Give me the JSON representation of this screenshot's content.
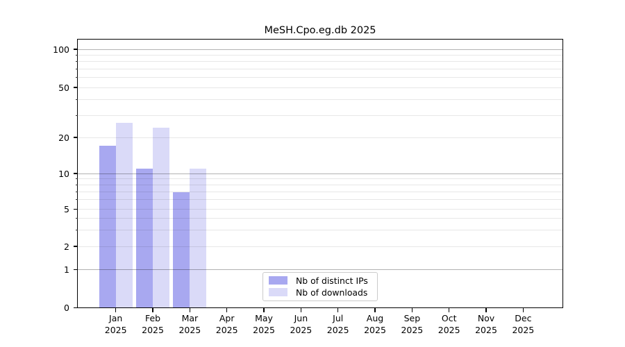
{
  "chart_data": {
    "type": "bar",
    "title": "MeSH.Cpo.eg.db 2025",
    "categories": [
      "Jan",
      "Feb",
      "Mar",
      "Apr",
      "May",
      "Jun",
      "Jul",
      "Aug",
      "Sep",
      "Oct",
      "Nov",
      "Dec"
    ],
    "year": "2025",
    "series": [
      {
        "name": "Nb of distinct IPs",
        "color": "#a8a8f0",
        "values": [
          17,
          11,
          7,
          0,
          0,
          0,
          0,
          0,
          0,
          0,
          0,
          0
        ]
      },
      {
        "name": "Nb of downloads",
        "color": "#dadaf8",
        "values": [
          26,
          24,
          11,
          0,
          0,
          0,
          0,
          0,
          0,
          0,
          0,
          0
        ]
      }
    ],
    "xlabel": "",
    "ylabel": "",
    "y_ticks": [
      0,
      1,
      2,
      5,
      10,
      20,
      50,
      100
    ],
    "y_tick_labels": [
      "0",
      "1",
      "2",
      "5",
      "10",
      "20",
      "50",
      "100"
    ],
    "ylim": [
      0,
      118
    ],
    "yscale": "log-like",
    "grid": "horizontal major and minor, drawn over bars",
    "legend_position": "lower center inside plot",
    "background_color": "#ffffff",
    "text_color": "#000000"
  }
}
